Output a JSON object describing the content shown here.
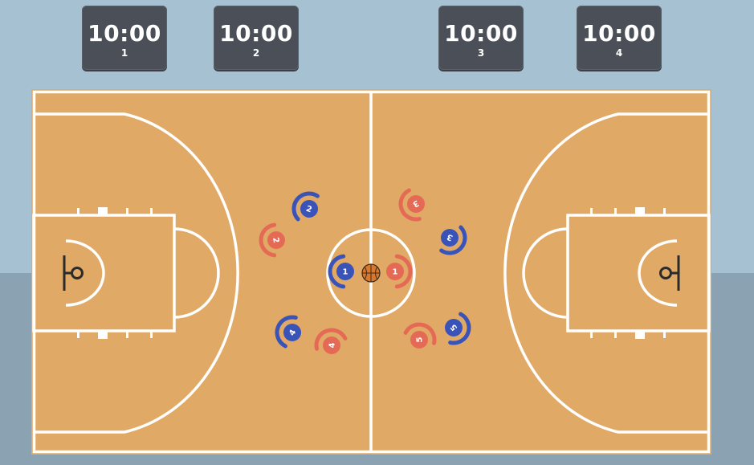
{
  "scoreboards": [
    {
      "time": "10:00",
      "number": "1"
    },
    {
      "time": "10:00",
      "number": "2"
    },
    {
      "time": "10:00",
      "number": "3"
    },
    {
      "time": "10:00",
      "number": "4"
    }
  ],
  "team_blue": {
    "color": "#3a53b8",
    "players": [
      "1",
      "2",
      "3",
      "4",
      "5"
    ]
  },
  "team_red": {
    "color": "#e56a55",
    "players": [
      "1",
      "2",
      "3",
      "4",
      "5"
    ]
  },
  "court": {
    "floor_color": "#e1a966",
    "line_color": "#ffffff",
    "backdrop_top_color": "#a6c1d2",
    "backdrop_bottom_color": "#8aa2b1"
  },
  "ball": {
    "color": "#d8782f"
  }
}
